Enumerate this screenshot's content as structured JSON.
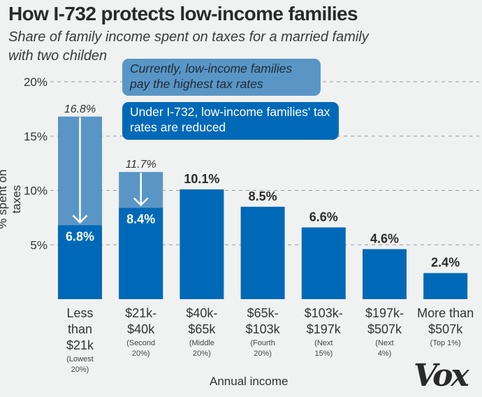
{
  "header": {
    "title": "How I-732 protects low-income families",
    "subtitle": "Share of family income spent on taxes for a married family with two childen"
  },
  "callouts": {
    "current": "Currently, low-income families pay the highest tax rates",
    "i732": "Under I-732, low-income families' tax rates are reduced"
  },
  "colors": {
    "current_bar": "#5996c6",
    "i732_bar": "#0069b7",
    "background": "#f0f1f1",
    "grid": "#9a9a9a"
  },
  "logo": "Vox",
  "chart_data": {
    "type": "bar",
    "title": "How I-732 protects low-income families",
    "subtitle": "Share of family income spent on taxes for a married family with two childen",
    "xlabel": "Annual income",
    "ylabel": "% spent on taxes",
    "ylim": [
      0,
      20
    ],
    "yticks": [
      5,
      10,
      15,
      20
    ],
    "ytick_labels": [
      "5%",
      "10%",
      "15%",
      "20%"
    ],
    "grid": true,
    "categories": [
      {
        "label": "Less than $21k",
        "lines": [
          "Less",
          "than",
          "$21k"
        ],
        "sub": [
          "(Lowest",
          "20%)"
        ]
      },
      {
        "label": "$21k-$40k",
        "lines": [
          "$21k-",
          "$40k"
        ],
        "sub": [
          "(Second",
          "20%)"
        ]
      },
      {
        "label": "$40k-$65k",
        "lines": [
          "$40k-",
          "$65k"
        ],
        "sub": [
          "(Middle",
          "20%)"
        ]
      },
      {
        "label": "$65k-$103k",
        "lines": [
          "$65k-",
          "$103k"
        ],
        "sub": [
          "(Fourth",
          "20%)"
        ]
      },
      {
        "label": "$103k-$197k",
        "lines": [
          "$103k-",
          "$197k"
        ],
        "sub": [
          "(Next",
          "15%)"
        ]
      },
      {
        "label": "$197k-$507k",
        "lines": [
          "$197k-",
          "$507k"
        ],
        "sub": [
          "(Next",
          "4%)"
        ]
      },
      {
        "label": "More than $507k",
        "lines": [
          "More than",
          "$507k"
        ],
        "sub": [
          "(Top 1%)"
        ]
      }
    ],
    "series": [
      {
        "name": "Current",
        "values": [
          16.8,
          11.7,
          null,
          null,
          null,
          null,
          null
        ],
        "labels": [
          "16.8%",
          "11.7%",
          null,
          null,
          null,
          null,
          null
        ]
      },
      {
        "name": "Under I-732",
        "values": [
          6.8,
          8.4,
          10.1,
          8.5,
          6.6,
          4.6,
          2.4
        ],
        "labels": [
          "6.8%",
          "8.4%",
          "10.1%",
          "8.5%",
          "6.6%",
          "4.6%",
          "2.4%"
        ]
      }
    ]
  }
}
